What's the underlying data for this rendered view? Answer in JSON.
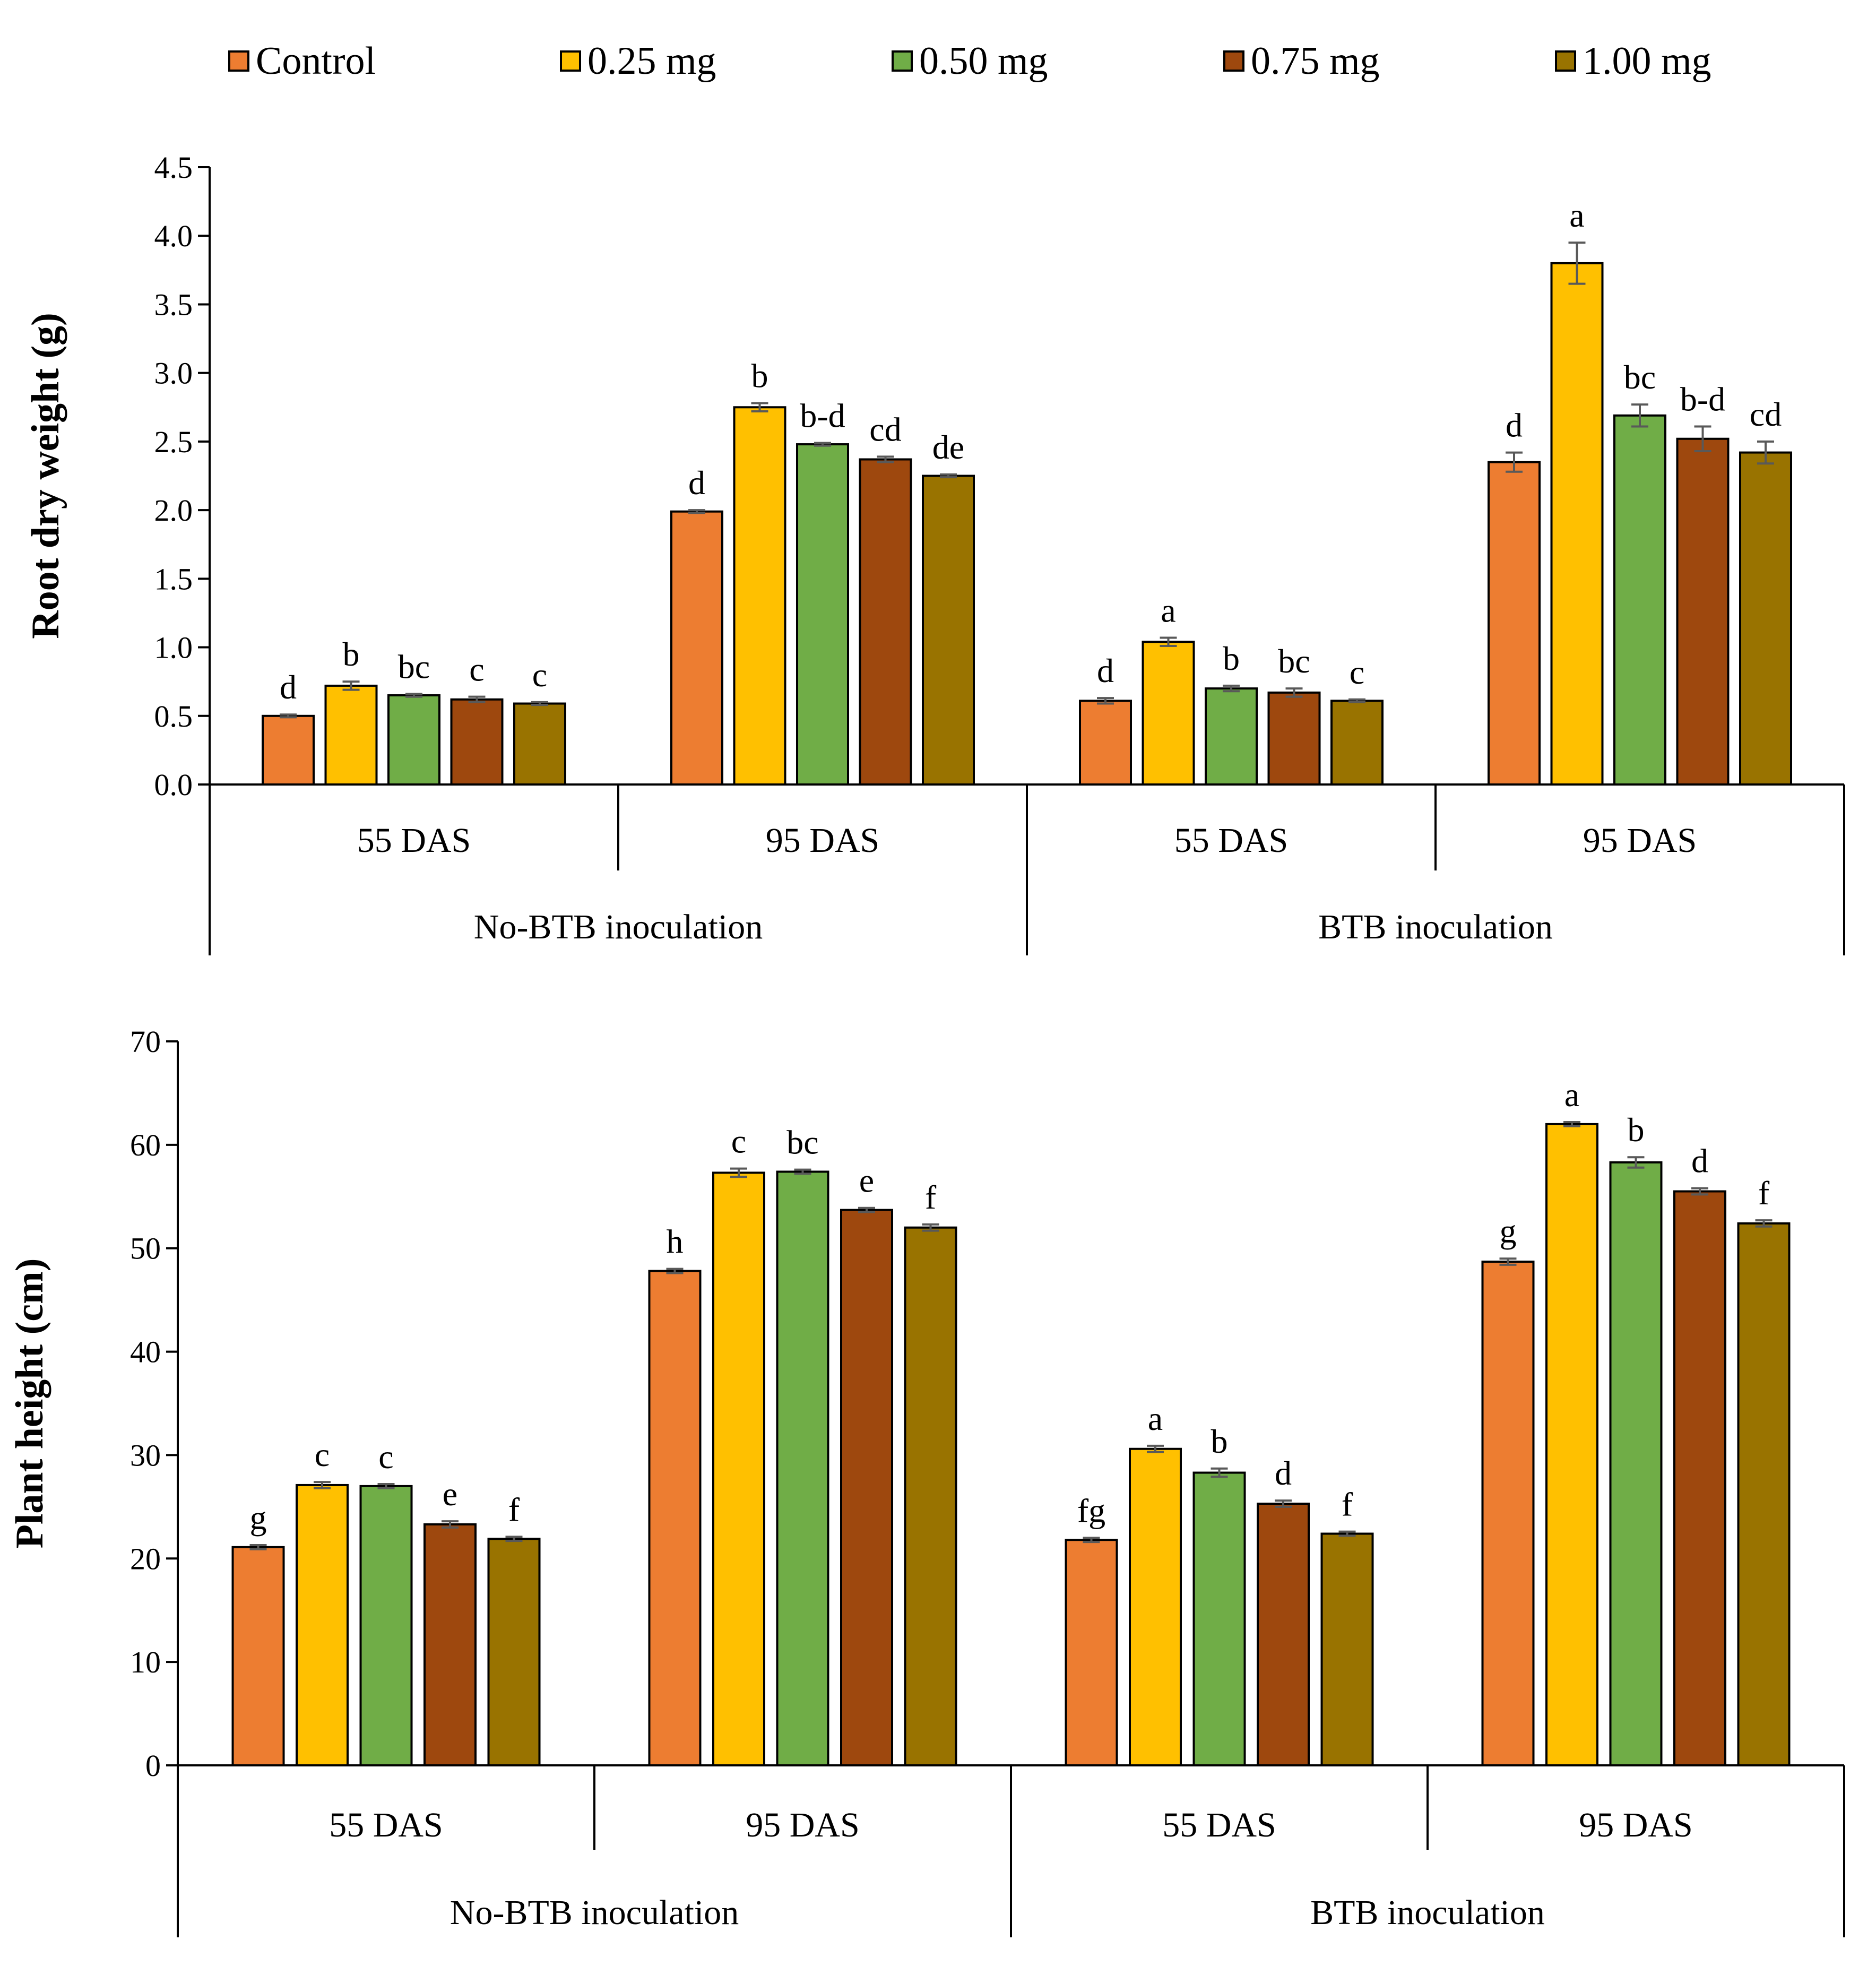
{
  "legend": {
    "items": [
      {
        "label": "Control",
        "color": "#ED7D31"
      },
      {
        "label": "0.25 mg",
        "color": "#FFC000"
      },
      {
        "label": "0.50 mg",
        "color": "#70AD47"
      },
      {
        "label": "0.75 mg",
        "color": "#9E480E"
      },
      {
        "label": "1.00 mg",
        "color": "#997300"
      }
    ]
  },
  "chart_data": [
    {
      "type": "bar",
      "title": "",
      "ylabel": "Root dry weight (g)",
      "xlabel": "",
      "ylim": [
        0,
        4.5
      ],
      "yticks": [
        0.0,
        0.5,
        1.0,
        1.5,
        2.0,
        2.5,
        3.0,
        3.5,
        4.0,
        4.5
      ],
      "ytick_labels": [
        "0.0",
        "0.5",
        "1.0",
        "1.5",
        "2.0",
        "2.5",
        "3.0",
        "3.5",
        "4.0",
        "4.5"
      ],
      "groups": [
        "55 DAS",
        "95 DAS",
        "55 DAS",
        "95 DAS"
      ],
      "supergroups": [
        "No-BTB inoculation",
        "BTB inoculation"
      ],
      "series": [
        {
          "name": "Control",
          "values": [
            0.5,
            1.99,
            0.61,
            2.35
          ],
          "errors": [
            0.01,
            0.01,
            0.02,
            0.07
          ],
          "letters": [
            "d",
            "d",
            "d",
            "d"
          ]
        },
        {
          "name": "0.25 mg",
          "values": [
            0.72,
            2.75,
            1.04,
            3.8
          ],
          "errors": [
            0.03,
            0.03,
            0.03,
            0.15
          ],
          "letters": [
            "b",
            "b",
            "a",
            "a"
          ]
        },
        {
          "name": "0.50 mg",
          "values": [
            0.65,
            2.48,
            0.7,
            2.69
          ],
          "errors": [
            0.01,
            0.01,
            0.02,
            0.08
          ],
          "letters": [
            "bc",
            "b-d",
            "b",
            "bc"
          ]
        },
        {
          "name": "0.75 mg",
          "values": [
            0.62,
            2.37,
            0.67,
            2.52
          ],
          "errors": [
            0.02,
            0.02,
            0.03,
            0.09
          ],
          "letters": [
            "c",
            "cd",
            "bc",
            "b-d"
          ]
        },
        {
          "name": "1.00 mg",
          "values": [
            0.59,
            2.25,
            0.61,
            2.42
          ],
          "errors": [
            0.01,
            0.01,
            0.01,
            0.08
          ],
          "letters": [
            "c",
            "de",
            "c",
            "cd"
          ]
        }
      ]
    },
    {
      "type": "bar",
      "title": "",
      "ylabel": "Plant height (cm)",
      "xlabel": "",
      "ylim": [
        0,
        70
      ],
      "yticks": [
        0,
        10,
        20,
        30,
        40,
        50,
        60,
        70
      ],
      "ytick_labels": [
        "0",
        "10",
        "20",
        "30",
        "40",
        "50",
        "60",
        "70"
      ],
      "groups": [
        "55 DAS",
        "95 DAS",
        "55 DAS",
        "95 DAS"
      ],
      "supergroups": [
        "No-BTB inoculation",
        "BTB inoculation"
      ],
      "series": [
        {
          "name": "Control",
          "values": [
            21.1,
            47.8,
            21.8,
            48.7
          ],
          "errors": [
            0.2,
            0.2,
            0.2,
            0.3
          ],
          "letters": [
            "g",
            "h",
            "fg",
            "g"
          ]
        },
        {
          "name": "0.25 mg",
          "values": [
            27.1,
            57.3,
            30.6,
            62.0
          ],
          "errors": [
            0.3,
            0.4,
            0.3,
            0.2
          ],
          "letters": [
            "c",
            "c",
            "a",
            "a"
          ]
        },
        {
          "name": "0.50 mg",
          "values": [
            27.0,
            57.4,
            28.3,
            58.3
          ],
          "errors": [
            0.2,
            0.2,
            0.4,
            0.5
          ],
          "letters": [
            "c",
            "bc",
            "b",
            "b"
          ]
        },
        {
          "name": "0.75 mg",
          "values": [
            23.3,
            53.7,
            25.3,
            55.5
          ],
          "errors": [
            0.3,
            0.2,
            0.3,
            0.3
          ],
          "letters": [
            "e",
            "e",
            "d",
            "d"
          ]
        },
        {
          "name": "1.00 mg",
          "values": [
            21.9,
            52.0,
            22.4,
            52.4
          ],
          "errors": [
            0.2,
            0.3,
            0.2,
            0.3
          ],
          "letters": [
            "f",
            "f",
            "f",
            "f"
          ]
        }
      ]
    }
  ]
}
